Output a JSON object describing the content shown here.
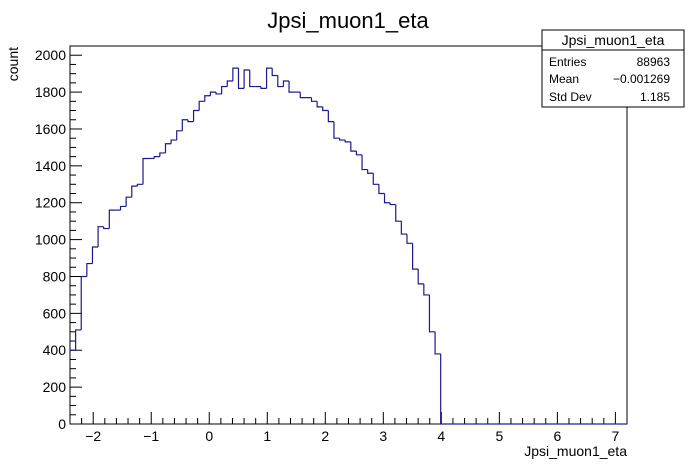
{
  "chart_data": {
    "type": "histogram",
    "title": "Jpsi_muon1_eta",
    "xlabel": "Jpsi_muon1_eta",
    "ylabel": "count",
    "xlim": [
      -2.4,
      7.2
    ],
    "ylim": [
      0,
      2050
    ],
    "x_ticks": [
      -2,
      -1,
      0,
      1,
      2,
      3,
      4,
      5,
      6,
      7
    ],
    "y_ticks": [
      0,
      200,
      400,
      600,
      800,
      1000,
      1200,
      1400,
      1600,
      1800,
      2000
    ],
    "bin_width": 0.0968,
    "bin_start": -2.4,
    "series": [
      {
        "values": [
          400,
          510,
          800,
          870,
          960,
          1070,
          1060,
          1160,
          1160,
          1180,
          1230,
          1290,
          1300,
          1440,
          1440,
          1450,
          1470,
          1520,
          1540,
          1590,
          1650,
          1640,
          1700,
          1750,
          1780,
          1800,
          1790,
          1830,
          1860,
          1930,
          1820,
          1920,
          1830,
          1830,
          1820,
          1930,
          1890,
          1830,
          1860,
          1800,
          1800,
          1770,
          1770,
          1750,
          1720,
          1700,
          1640,
          1550,
          1540,
          1530,
          1480,
          1460,
          1380,
          1360,
          1300,
          1250,
          1200,
          1190,
          1100,
          1030,
          980,
          840,
          760,
          700,
          500,
          380,
          0,
          0,
          0,
          0,
          0,
          0,
          0,
          0,
          0,
          0,
          0,
          0,
          0,
          0,
          0,
          0,
          0,
          0,
          0,
          0,
          0,
          0,
          0,
          0,
          0,
          0,
          0,
          0,
          0,
          0,
          0,
          0,
          0,
          0
        ]
      }
    ],
    "stats": {
      "title": "Jpsi_muon1_eta",
      "rows": [
        {
          "label": "Entries",
          "value": "88963"
        },
        {
          "label": "Mean",
          "value": "−0.001269"
        },
        {
          "label": "Std Dev",
          "value": "1.185"
        }
      ]
    },
    "colors": {
      "line": "#1a1a8c",
      "axis": "#000000",
      "background": "#ffffff"
    }
  }
}
